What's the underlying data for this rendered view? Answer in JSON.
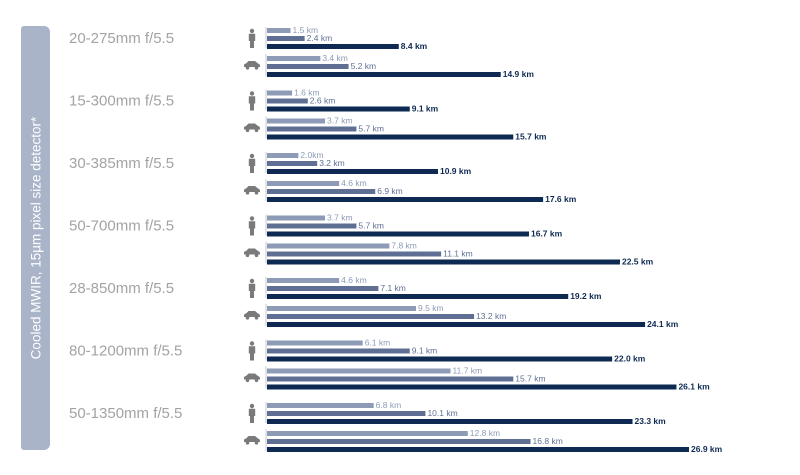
{
  "side_label": "Cooled MWIR, 15µm pixel size detector*",
  "icons": {
    "person": "person-icon",
    "vehicle": "car-icon"
  },
  "colors": {
    "background": "#ffffff",
    "tab": "#a9b4c9",
    "lens_text": "#a3a3a3",
    "detection": "#8e9bb6",
    "recognition": "#5f6f94",
    "identification": "#0e2a52"
  },
  "chart_data": {
    "type": "bar",
    "orientation": "horizontal",
    "unit": "km",
    "xlim": [
      0,
      27
    ],
    "categories": [
      "20-275mm f/5.5",
      "15-300mm f/5.5",
      "30-385mm f/5.5",
      "50-700mm f/5.5",
      "28-850mm f/5.5",
      "80-1200mm f/5.5",
      "50-1350mm f/5.5"
    ],
    "groups": [
      {
        "lens": "20-275mm f/5.5",
        "person": {
          "values": [
            1.5,
            2.4,
            8.4
          ],
          "labels": [
            "1.5 km",
            "2.4 km",
            "8.4 km"
          ]
        },
        "vehicle": {
          "values": [
            3.4,
            5.2,
            14.9
          ],
          "labels": [
            "3.4 km",
            "5.2 km",
            "14.9 km"
          ]
        }
      },
      {
        "lens": "15-300mm f/5.5",
        "person": {
          "values": [
            1.6,
            2.6,
            9.1
          ],
          "labels": [
            "1.6 km",
            "2.6 km",
            "9.1 km"
          ]
        },
        "vehicle": {
          "values": [
            3.7,
            5.7,
            15.7
          ],
          "labels": [
            "3.7 km",
            "5.7 km",
            "15.7 km"
          ]
        }
      },
      {
        "lens": "30-385mm f/5.5",
        "person": {
          "values": [
            2.0,
            3.2,
            10.9
          ],
          "labels": [
            "2.0km",
            "3.2 km",
            "10.9 km"
          ]
        },
        "vehicle": {
          "values": [
            4.6,
            6.9,
            17.6
          ],
          "labels": [
            "4.6 km",
            "6.9 km",
            "17.6 km"
          ]
        }
      },
      {
        "lens": "50-700mm f/5.5",
        "person": {
          "values": [
            3.7,
            5.7,
            16.7
          ],
          "labels": [
            "3.7 km",
            "5.7 km",
            "16.7 km"
          ]
        },
        "vehicle": {
          "values": [
            7.8,
            11.1,
            22.5
          ],
          "labels": [
            "7.8 km",
            "11.1 km",
            "22.5 km"
          ]
        }
      },
      {
        "lens": "28-850mm f/5.5",
        "person": {
          "values": [
            4.6,
            7.1,
            19.2
          ],
          "labels": [
            "4.6 km",
            "7.1 km",
            "19.2 km"
          ]
        },
        "vehicle": {
          "values": [
            9.5,
            13.2,
            24.1
          ],
          "labels": [
            "9.5 km",
            "13.2 km",
            "24.1 km"
          ]
        }
      },
      {
        "lens": "80-1200mm f/5.5",
        "person": {
          "values": [
            6.1,
            9.1,
            22.0
          ],
          "labels": [
            "6.1 km",
            "9.1 km",
            "22.0 km"
          ]
        },
        "vehicle": {
          "values": [
            11.7,
            15.7,
            26.1
          ],
          "labels": [
            "11.7 km",
            "15.7 km",
            "26.1 km"
          ]
        }
      },
      {
        "lens": "50-1350mm f/5.5",
        "person": {
          "values": [
            6.8,
            10.1,
            23.3
          ],
          "labels": [
            "6.8 km",
            "10.1 km",
            "23.3 km"
          ]
        },
        "vehicle": {
          "values": [
            12.8,
            16.8,
            26.9
          ],
          "labels": [
            "12.8 km",
            "16.8 km",
            "26.9 km"
          ]
        }
      }
    ]
  }
}
